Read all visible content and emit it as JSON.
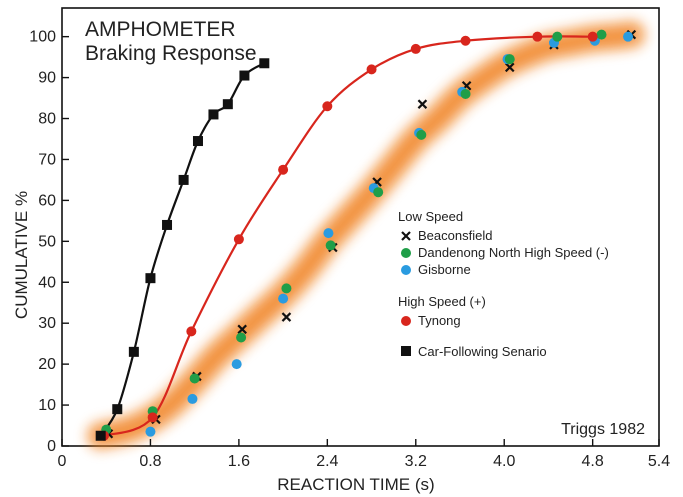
{
  "chart_data": {
    "type": "scatter",
    "title": "AMPHOMETER",
    "subtitle": "Braking Response",
    "xlabel": "REACTION TIME (s)",
    "ylabel": "CUMULATIVE  %",
    "credit": "Triggs 1982",
    "xlim": [
      0,
      5.4
    ],
    "ylim": [
      0,
      107
    ],
    "xticks": [
      "0",
      "0.8",
      "1.6",
      "2.4",
      "3.2",
      "4.0",
      "4.8",
      "5.4"
    ],
    "yticks": [
      "0",
      "10",
      "20",
      "30",
      "40",
      "50",
      "60",
      "70",
      "80",
      "90",
      "100"
    ],
    "grid": false,
    "legend": {
      "group1_title": "Low Speed",
      "group2_title": "High Speed (+)",
      "items": [
        {
          "label": "Beaconsfield",
          "marker": "x",
          "color": "#111111",
          "group": 1
        },
        {
          "label": "Dandenong North High Speed (-)",
          "marker": "circle",
          "color": "#1f9e48",
          "group": 1
        },
        {
          "label": "Gisborne",
          "marker": "circle",
          "color": "#2a9be0",
          "group": 1
        },
        {
          "label": "Tynong",
          "marker": "circle",
          "color": "#d8261d",
          "group": 2
        },
        {
          "label": "Car-Following Senario",
          "marker": "square",
          "color": "#111111",
          "group": 3
        }
      ]
    },
    "series": [
      {
        "name": "Car-Following Senario",
        "marker": "square",
        "color": "#111111",
        "curve": true,
        "points": [
          [
            0.35,
            2.5
          ],
          [
            0.5,
            9
          ],
          [
            0.65,
            23
          ],
          [
            0.8,
            41
          ],
          [
            0.95,
            54
          ],
          [
            1.1,
            65
          ],
          [
            1.23,
            74.5
          ],
          [
            1.37,
            81
          ],
          [
            1.5,
            83.5
          ],
          [
            1.65,
            90.5
          ],
          [
            1.83,
            93.5
          ]
        ]
      },
      {
        "name": "Tynong",
        "marker": "circle",
        "color": "#d8261d",
        "curve": true,
        "points": [
          [
            0.38,
            2.5
          ],
          [
            0.82,
            7
          ],
          [
            1.17,
            28
          ],
          [
            1.6,
            50.5
          ],
          [
            2.0,
            67.5
          ],
          [
            2.4,
            83
          ],
          [
            2.8,
            92
          ],
          [
            3.2,
            97
          ],
          [
            3.65,
            99
          ],
          [
            4.3,
            100
          ],
          [
            4.8,
            100
          ]
        ]
      },
      {
        "name": "Beaconsfield",
        "marker": "x",
        "color": "#111111",
        "curve": false,
        "points": [
          [
            0.42,
            3
          ],
          [
            0.85,
            6.5
          ],
          [
            1.22,
            17
          ],
          [
            1.63,
            28.5
          ],
          [
            2.03,
            31.5
          ],
          [
            2.45,
            48.5
          ],
          [
            2.85,
            64.5
          ],
          [
            3.26,
            83.5
          ],
          [
            3.66,
            88
          ],
          [
            4.05,
            92.5
          ],
          [
            4.45,
            98
          ],
          [
            5.15,
            100.5
          ]
        ]
      },
      {
        "name": "Dandenong North High Speed (-)",
        "marker": "circle",
        "color": "#1f9e48",
        "curve": false,
        "points": [
          [
            0.4,
            4
          ],
          [
            0.82,
            8.5
          ],
          [
            1.2,
            16.5
          ],
          [
            1.62,
            26.5
          ],
          [
            2.03,
            38.5
          ],
          [
            2.43,
            49
          ],
          [
            2.86,
            62
          ],
          [
            3.25,
            76
          ],
          [
            3.65,
            86
          ],
          [
            4.05,
            94.5
          ],
          [
            4.48,
            100
          ],
          [
            4.88,
            100.5
          ]
        ]
      },
      {
        "name": "Gisborne",
        "marker": "circle",
        "color": "#2a9be0",
        "curve": false,
        "points": [
          [
            0.8,
            3.5
          ],
          [
            1.18,
            11.5
          ],
          [
            1.58,
            20
          ],
          [
            2.0,
            36
          ],
          [
            2.41,
            52
          ],
          [
            2.82,
            63
          ],
          [
            3.23,
            76.5
          ],
          [
            3.62,
            86.5
          ],
          [
            4.03,
            94.5
          ],
          [
            4.45,
            98.5
          ],
          [
            4.82,
            99
          ],
          [
            5.12,
            100
          ]
        ]
      }
    ],
    "band": {
      "color": "#f07f1a",
      "points": [
        [
          0.35,
          2.5
        ],
        [
          0.6,
          4
        ],
        [
          0.8,
          6.5
        ],
        [
          1.0,
          10.5
        ],
        [
          1.2,
          16
        ],
        [
          1.4,
          22
        ],
        [
          1.6,
          27
        ],
        [
          1.8,
          32
        ],
        [
          2.0,
          37
        ],
        [
          2.2,
          43
        ],
        [
          2.4,
          50
        ],
        [
          2.6,
          56
        ],
        [
          2.8,
          62
        ],
        [
          3.0,
          68.5
        ],
        [
          3.2,
          75
        ],
        [
          3.4,
          80
        ],
        [
          3.6,
          85.5
        ],
        [
          3.8,
          89.5
        ],
        [
          4.0,
          93
        ],
        [
          4.2,
          95.5
        ],
        [
          4.4,
          97.5
        ],
        [
          4.6,
          98.5
        ],
        [
          4.8,
          99.5
        ],
        [
          5.0,
          100
        ],
        [
          5.15,
          100.5
        ]
      ]
    }
  }
}
